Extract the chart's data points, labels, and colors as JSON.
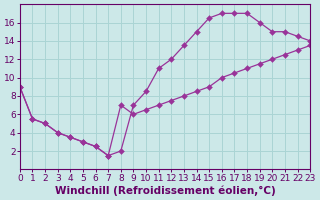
{
  "line1_x": [
    0,
    1,
    2,
    3,
    4,
    5,
    6,
    7,
    8,
    9,
    10,
    11,
    12,
    13,
    14,
    15,
    16,
    17,
    18,
    19,
    20,
    21,
    22,
    23
  ],
  "line1_y": [
    9.0,
    5.5,
    5.0,
    4.0,
    3.5,
    3.0,
    2.5,
    1.5,
    2.0,
    7.0,
    8.5,
    11.0,
    12.0,
    13.5,
    15.0,
    16.5,
    17.0,
    17.0,
    17.0,
    16.0,
    15.0,
    15.0,
    14.5,
    14.0
  ],
  "line2_x": [
    0,
    1,
    2,
    3,
    4,
    5,
    6,
    7,
    8,
    9,
    10,
    11,
    12,
    13,
    14,
    15,
    16,
    17,
    18,
    19,
    20,
    21,
    22,
    23
  ],
  "line2_y": [
    9.0,
    5.5,
    5.0,
    4.0,
    3.5,
    3.0,
    2.5,
    1.5,
    7.0,
    6.0,
    6.5,
    7.0,
    7.5,
    8.0,
    8.5,
    9.0,
    10.0,
    10.5,
    11.0,
    11.5,
    12.0,
    12.5,
    13.0,
    13.5
  ],
  "line_color": "#993399",
  "marker_size": 3,
  "bg_color": "#cce8e8",
  "grid_color": "#aad4d4",
  "axis_color": "#660066",
  "xlabel": "Windchill (Refroidissement éolien,°C)",
  "xlim": [
    0,
    23
  ],
  "ylim": [
    0,
    18
  ],
  "xticks": [
    0,
    1,
    2,
    3,
    4,
    5,
    6,
    7,
    8,
    9,
    10,
    11,
    12,
    13,
    14,
    15,
    16,
    17,
    18,
    19,
    20,
    21,
    22,
    23
  ],
  "yticks": [
    2,
    4,
    6,
    8,
    10,
    12,
    14,
    16
  ],
  "fontsize": 6.5,
  "xlabel_fontsize": 7.5
}
